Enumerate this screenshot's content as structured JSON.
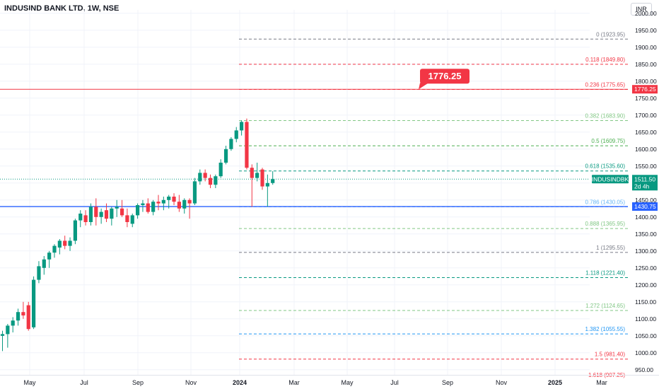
{
  "header": {
    "title": "INDUSIND BANK LTD, 1W, NSE",
    "currency": "INR"
  },
  "colors": {
    "up": "#089981",
    "down": "#f23645",
    "grid": "#f0f3fa",
    "axis_text": "#131722",
    "resistance": "#f23645",
    "support": "#2962ff"
  },
  "chart_data": {
    "type": "candlestick",
    "ylim": [
      935,
      2010
    ],
    "y_ticks": [
      950,
      1000,
      1050,
      1100,
      1150,
      1200,
      1250,
      1300,
      1350,
      1400,
      1450,
      1500,
      1550,
      1600,
      1650,
      1700,
      1750,
      1800,
      1850,
      1900,
      1950,
      2000
    ],
    "x_tick_labels": [
      "May",
      "Jul",
      "Sep",
      "Nov",
      "2024",
      "Mar",
      "May",
      "Jul",
      "Sep",
      "Nov",
      "2025",
      "Mar"
    ],
    "candles": [
      {
        "o": 1050,
        "h": 1065,
        "l": 1005,
        "c": 1055
      },
      {
        "o": 1055,
        "h": 1085,
        "l": 1015,
        "c": 1080
      },
      {
        "o": 1080,
        "h": 1105,
        "l": 1060,
        "c": 1095
      },
      {
        "o": 1095,
        "h": 1130,
        "l": 1080,
        "c": 1120
      },
      {
        "o": 1120,
        "h": 1150,
        "l": 1100,
        "c": 1110
      },
      {
        "o": 1140,
        "h": 1150,
        "l": 1065,
        "c": 1070
      },
      {
        "o": 1075,
        "h": 1225,
        "l": 1070,
        "c": 1215
      },
      {
        "o": 1215,
        "h": 1270,
        "l": 1205,
        "c": 1255
      },
      {
        "o": 1250,
        "h": 1285,
        "l": 1230,
        "c": 1275
      },
      {
        "o": 1275,
        "h": 1300,
        "l": 1250,
        "c": 1295
      },
      {
        "o": 1295,
        "h": 1320,
        "l": 1280,
        "c": 1315
      },
      {
        "o": 1310,
        "h": 1335,
        "l": 1290,
        "c": 1330
      },
      {
        "o": 1330,
        "h": 1345,
        "l": 1305,
        "c": 1315
      },
      {
        "o": 1315,
        "h": 1340,
        "l": 1300,
        "c": 1330
      },
      {
        "o": 1330,
        "h": 1395,
        "l": 1320,
        "c": 1390
      },
      {
        "o": 1390,
        "h": 1420,
        "l": 1370,
        "c": 1410
      },
      {
        "o": 1405,
        "h": 1420,
        "l": 1375,
        "c": 1385
      },
      {
        "o": 1385,
        "h": 1440,
        "l": 1375,
        "c": 1430
      },
      {
        "o": 1430,
        "h": 1455,
        "l": 1375,
        "c": 1400
      },
      {
        "o": 1400,
        "h": 1425,
        "l": 1380,
        "c": 1415
      },
      {
        "o": 1420,
        "h": 1440,
        "l": 1385,
        "c": 1395
      },
      {
        "o": 1395,
        "h": 1430,
        "l": 1375,
        "c": 1425
      },
      {
        "o": 1425,
        "h": 1450,
        "l": 1400,
        "c": 1430
      },
      {
        "o": 1425,
        "h": 1450,
        "l": 1400,
        "c": 1405
      },
      {
        "o": 1405,
        "h": 1425,
        "l": 1370,
        "c": 1385
      },
      {
        "o": 1380,
        "h": 1410,
        "l": 1370,
        "c": 1405
      },
      {
        "o": 1405,
        "h": 1440,
        "l": 1395,
        "c": 1435
      },
      {
        "o": 1435,
        "h": 1450,
        "l": 1415,
        "c": 1440
      },
      {
        "o": 1440,
        "h": 1455,
        "l": 1410,
        "c": 1415
      },
      {
        "o": 1415,
        "h": 1450,
        "l": 1405,
        "c": 1445
      },
      {
        "o": 1445,
        "h": 1465,
        "l": 1420,
        "c": 1440
      },
      {
        "o": 1440,
        "h": 1460,
        "l": 1420,
        "c": 1450
      },
      {
        "o": 1450,
        "h": 1465,
        "l": 1425,
        "c": 1460
      },
      {
        "o": 1460,
        "h": 1470,
        "l": 1435,
        "c": 1445
      },
      {
        "o": 1445,
        "h": 1465,
        "l": 1415,
        "c": 1425
      },
      {
        "o": 1425,
        "h": 1455,
        "l": 1410,
        "c": 1450
      },
      {
        "o": 1450,
        "h": 1455,
        "l": 1395,
        "c": 1440
      },
      {
        "o": 1440,
        "h": 1515,
        "l": 1435,
        "c": 1505
      },
      {
        "o": 1505,
        "h": 1540,
        "l": 1495,
        "c": 1530
      },
      {
        "o": 1530,
        "h": 1540,
        "l": 1505,
        "c": 1515
      },
      {
        "o": 1515,
        "h": 1525,
        "l": 1485,
        "c": 1495
      },
      {
        "o": 1495,
        "h": 1525,
        "l": 1485,
        "c": 1520
      },
      {
        "o": 1520,
        "h": 1570,
        "l": 1515,
        "c": 1560
      },
      {
        "o": 1560,
        "h": 1610,
        "l": 1555,
        "c": 1600
      },
      {
        "o": 1600,
        "h": 1635,
        "l": 1595,
        "c": 1630
      },
      {
        "o": 1630,
        "h": 1665,
        "l": 1620,
        "c": 1655
      },
      {
        "o": 1655,
        "h": 1685,
        "l": 1640,
        "c": 1680
      },
      {
        "o": 1680,
        "h": 1690,
        "l": 1540,
        "c": 1545
      },
      {
        "o": 1545,
        "h": 1555,
        "l": 1430,
        "c": 1515
      },
      {
        "o": 1515,
        "h": 1560,
        "l": 1505,
        "c": 1530
      },
      {
        "o": 1540,
        "h": 1545,
        "l": 1480,
        "c": 1490
      },
      {
        "o": 1490,
        "h": 1525,
        "l": 1430,
        "c": 1500
      },
      {
        "o": 1500,
        "h": 1535,
        "l": 1495,
        "c": 1511.5
      }
    ],
    "fib_levels": [
      {
        "ratio": "0",
        "price": 1923.95,
        "label": "0 (1923.95)",
        "color": "#787b86"
      },
      {
        "ratio": "0.118",
        "price": 1849.8,
        "label": "0.118 (1849.80)",
        "color": "#f23645"
      },
      {
        "ratio": "0.236",
        "price": 1775.65,
        "label": "0.236 (1775.65)",
        "color": "#f23645"
      },
      {
        "ratio": "0.382",
        "price": 1683.9,
        "label": "0.382 (1683.90)",
        "color": "#81c784"
      },
      {
        "ratio": "0.5",
        "price": 1609.75,
        "label": "0.5 (1609.75)",
        "color": "#4caf50"
      },
      {
        "ratio": "0.618",
        "price": 1535.6,
        "label": "0.618 (1535.60)",
        "color": "#089981"
      },
      {
        "ratio": "0.786",
        "price": 1430.05,
        "label": "0.786 (1430.05)",
        "color": "#64b5f6"
      },
      {
        "ratio": "0.888",
        "price": 1365.95,
        "label": "0.888 (1365.95)",
        "color": "#81c784"
      },
      {
        "ratio": "1",
        "price": 1295.55,
        "label": "1 (1295.55)",
        "color": "#787b86"
      },
      {
        "ratio": "1.118",
        "price": 1221.4,
        "label": "1.118 (1221.40)",
        "color": "#089981"
      },
      {
        "ratio": "1.272",
        "price": 1124.65,
        "label": "1.272 (1124.65)",
        "color": "#81c784"
      },
      {
        "ratio": "1.382",
        "price": 1055.55,
        "label": "1.382 (1055.55)",
        "color": "#2196f3"
      },
      {
        "ratio": "1.5",
        "price": 981.4,
        "label": "1.5 (981.40)",
        "color": "#f23645"
      },
      {
        "ratio": "1.618",
        "price": 907.25,
        "label": "1.618 (907.25)",
        "color": "#f23645"
      }
    ],
    "resistance": {
      "price": 1776.25,
      "label": "1776.25"
    },
    "support": {
      "price": 1430.75,
      "label": "1430.75"
    },
    "last_price": {
      "price": 1511.5,
      "label": "1511.50",
      "symbol": "INDUSINDBK",
      "countdown": "2d 4h"
    }
  }
}
